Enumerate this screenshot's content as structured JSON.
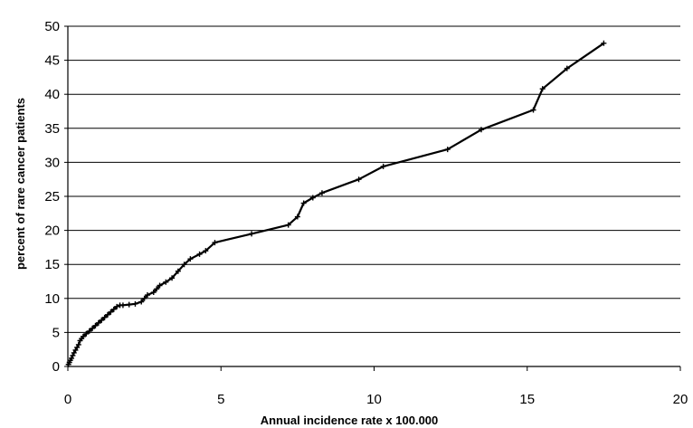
{
  "chart_data": {
    "type": "line",
    "title": "",
    "xlabel": "Annual incidence rate x 100.000",
    "ylabel": "percent of rare cancer patients",
    "xlim": [
      0,
      20
    ],
    "ylim": [
      0,
      50
    ],
    "x_ticks": [
      0,
      5,
      10,
      15,
      20
    ],
    "y_ticks": [
      0,
      5,
      10,
      15,
      20,
      25,
      30,
      35,
      40,
      45,
      50
    ],
    "grid": "horizontal",
    "legend": "none",
    "line_color": "#000000",
    "series": [
      {
        "x": [
          0.02,
          0.05,
          0.08,
          0.12,
          0.16,
          0.2,
          0.25,
          0.3,
          0.35,
          0.4,
          0.45,
          0.5,
          0.6,
          0.7,
          0.8,
          0.9,
          1.0,
          1.1,
          1.2,
          1.3,
          1.4,
          1.5,
          1.6,
          1.7,
          1.8,
          2.0,
          2.2,
          2.4,
          2.5,
          2.6,
          2.8,
          2.9,
          3.0,
          3.2,
          3.4,
          3.6,
          3.8,
          4.0,
          4.3,
          4.5,
          4.8,
          6.0,
          7.2,
          7.5,
          7.7,
          8.0,
          8.3,
          9.5,
          10.3,
          12.4,
          13.5,
          15.2,
          15.5,
          16.3,
          17.5
        ],
        "y": [
          0.3,
          0.6,
          0.9,
          1.2,
          1.6,
          2.0,
          2.4,
          2.8,
          3.2,
          3.8,
          4.1,
          4.4,
          4.8,
          5.2,
          5.6,
          6.0,
          6.4,
          6.8,
          7.2,
          7.6,
          8.0,
          8.4,
          8.8,
          9.0,
          9.0,
          9.1,
          9.2,
          9.5,
          10.0,
          10.5,
          10.9,
          11.4,
          11.9,
          12.4,
          13.0,
          14.0,
          15.0,
          15.8,
          16.5,
          17.0,
          18.2,
          19.5,
          20.8,
          22.0,
          24.0,
          24.8,
          25.5,
          27.5,
          29.4,
          31.9,
          34.8,
          37.7,
          40.8,
          43.8,
          47.5
        ]
      }
    ]
  }
}
